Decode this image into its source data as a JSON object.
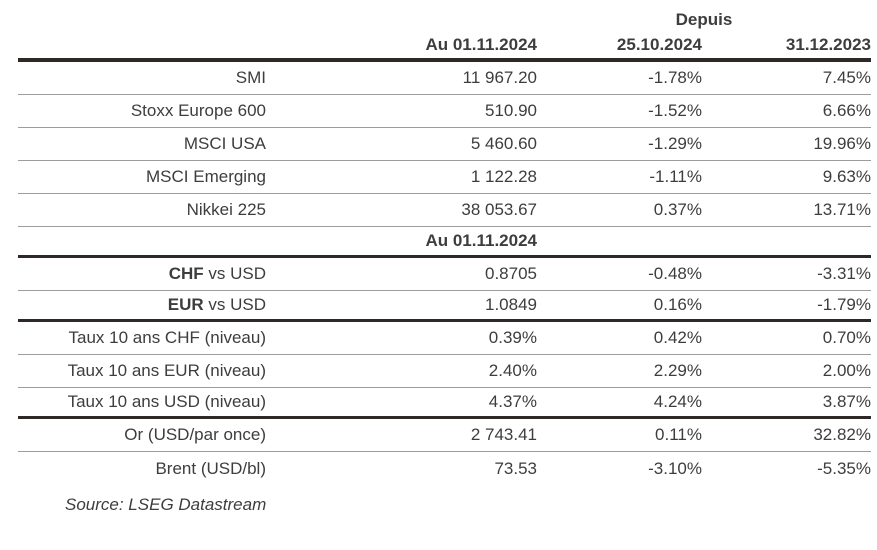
{
  "header": {
    "depuis_label": "Depuis",
    "columns": [
      "Au 01.11.2024",
      "25.10.2024",
      "31.12.2023"
    ],
    "mid_section_label": "Au 01.11.2024"
  },
  "rows": [
    {
      "label_bold": "",
      "label": "SMI",
      "level": "11 967.20",
      "chg_prev": "-1.78%",
      "chg_ytd": "7.45%"
    },
    {
      "label_bold": "",
      "label": "Stoxx Europe 600",
      "level": "510.90",
      "chg_prev": "-1.52%",
      "chg_ytd": "6.66%"
    },
    {
      "label_bold": "",
      "label": "MSCI USA",
      "level": "5 460.60",
      "chg_prev": "-1.29%",
      "chg_ytd": "19.96%"
    },
    {
      "label_bold": "",
      "label": "MSCI Emerging",
      "level": "1 122.28",
      "chg_prev": "-1.11%",
      "chg_ytd": "9.63%"
    },
    {
      "label_bold": "",
      "label": "Nikkei 225",
      "level": "38 053.67",
      "chg_prev": "0.37%",
      "chg_ytd": "13.71%"
    },
    {
      "label_bold": "CHF",
      "label": " vs USD",
      "level": "0.8705",
      "chg_prev": "-0.48%",
      "chg_ytd": "-3.31%"
    },
    {
      "label_bold": "EUR",
      "label": " vs USD",
      "level": "1.0849",
      "chg_prev": "0.16%",
      "chg_ytd": "-1.79%"
    },
    {
      "label_bold": "",
      "label": "Taux 10 ans CHF (niveau)",
      "level": "0.39%",
      "chg_prev": "0.42%",
      "chg_ytd": "0.70%"
    },
    {
      "label_bold": "",
      "label": "Taux 10 ans EUR (niveau)",
      "level": "2.40%",
      "chg_prev": "2.29%",
      "chg_ytd": "2.00%"
    },
    {
      "label_bold": "",
      "label": "Taux 10 ans USD (niveau)",
      "level": "4.37%",
      "chg_prev": "4.24%",
      "chg_ytd": "3.87%"
    },
    {
      "label_bold": "",
      "label": "Or (USD/par once)",
      "level": "2 743.41",
      "chg_prev": "0.11%",
      "chg_ytd": "32.82%"
    },
    {
      "label_bold": "",
      "label": "Brent (USD/bl)",
      "level": "73.53",
      "chg_prev": "-3.10%",
      "chg_ytd": "-5.35%"
    }
  ],
  "footer": {
    "source": "Source: LSEG Datastream"
  },
  "colors": {
    "text": "#3d3d3d",
    "rule_thick": "#2e2826",
    "rule_thin": "#9c9c9c",
    "background": "#ffffff"
  }
}
